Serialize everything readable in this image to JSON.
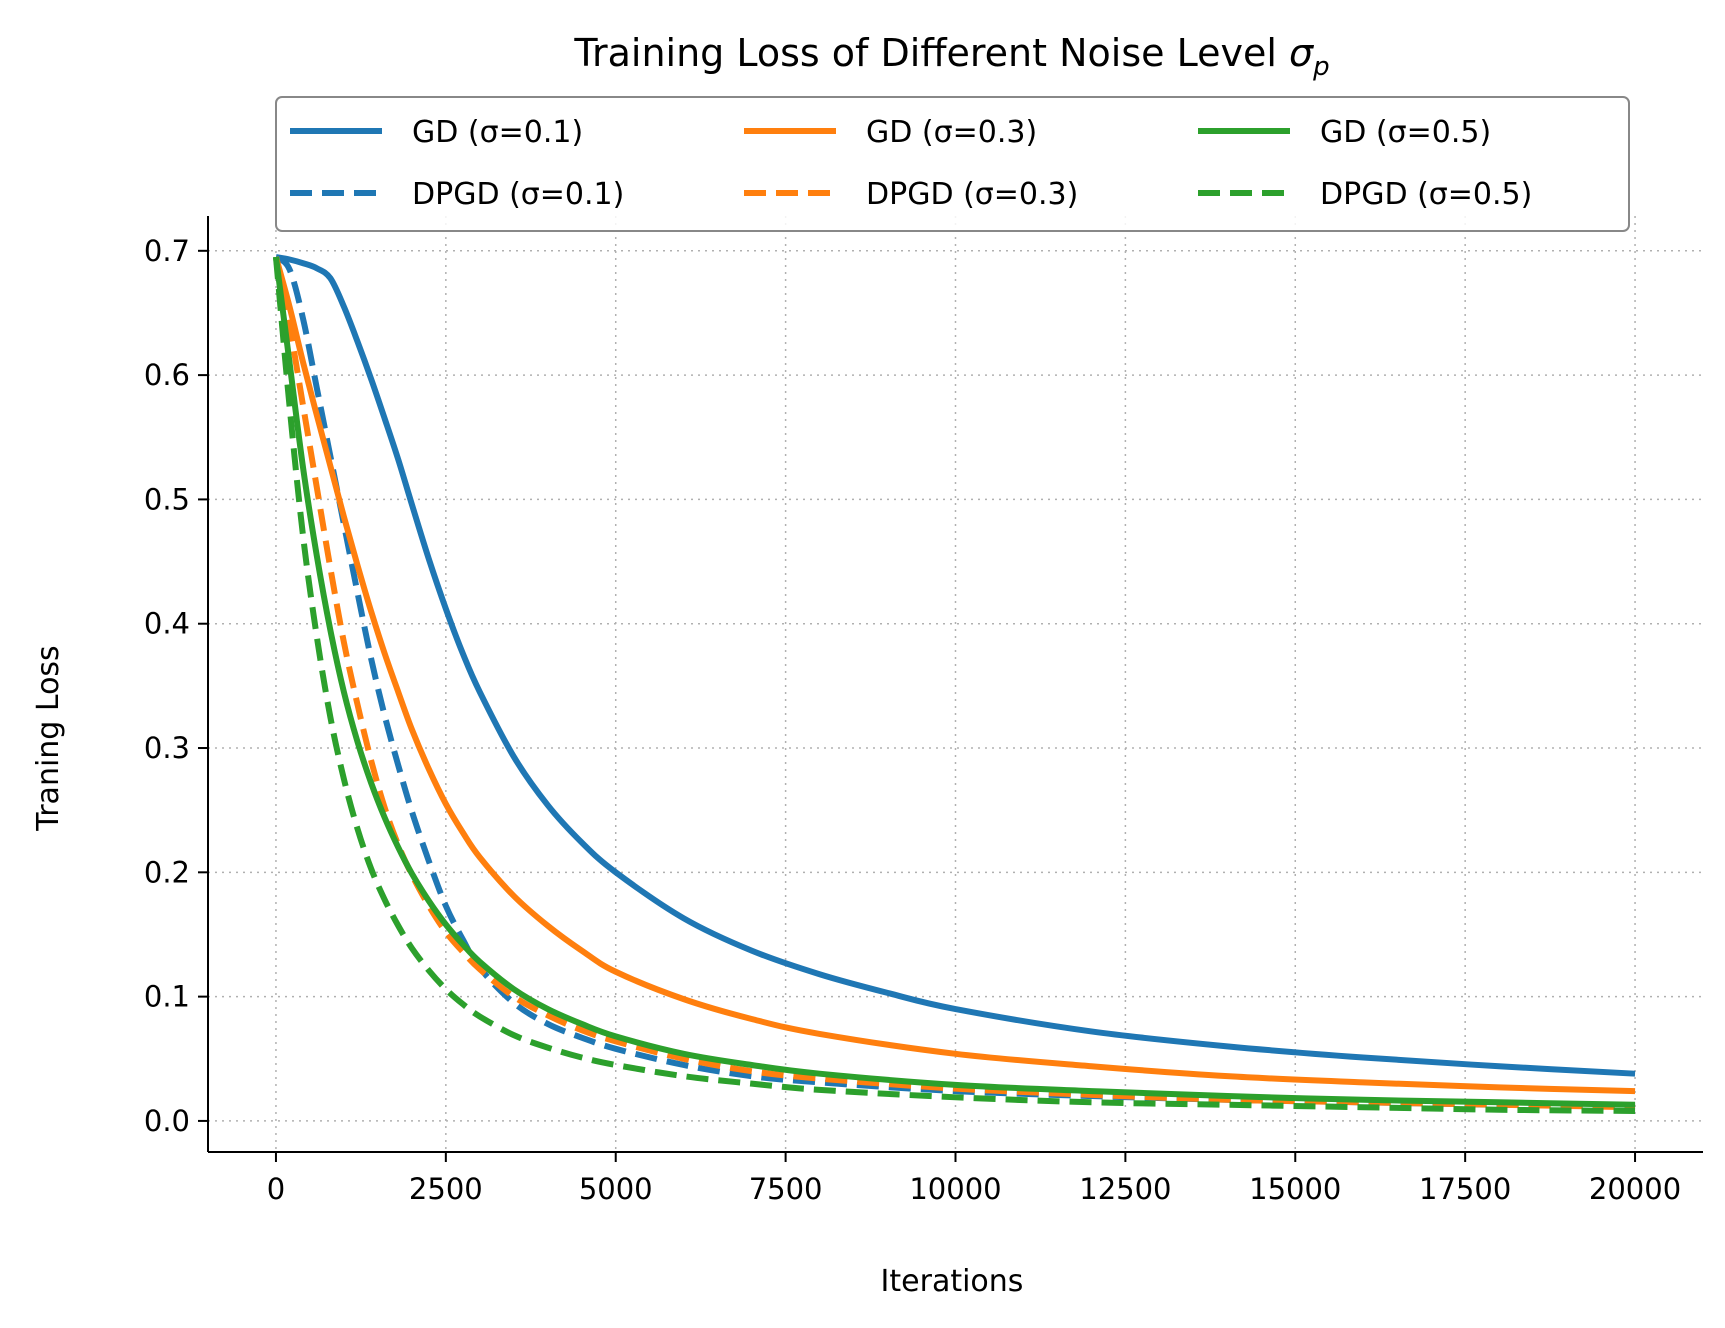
{
  "chart_data": {
    "type": "line",
    "title": "Training Loss of Different Noise Level",
    "title_symbol": "σ",
    "title_symbol_subscript": "p",
    "xlabel": "Iterations",
    "ylabel": "Traning Loss",
    "xlim": [
      -1000,
      21000
    ],
    "ylim": [
      -0.025,
      0.728
    ],
    "xticks": [
      0,
      2500,
      5000,
      7500,
      10000,
      12500,
      15000,
      17500,
      20000
    ],
    "yticks": [
      0.0,
      0.1,
      0.2,
      0.3,
      0.4,
      0.5,
      0.6,
      0.7
    ],
    "grid": true,
    "legend_placement": "top-center",
    "legend_columns": 3,
    "series": [
      {
        "name": "GD (σ=0.1)",
        "color": "#1f77b4",
        "style": "solid",
        "x": [
          0,
          200,
          400,
          600,
          800,
          1000,
          1200,
          1400,
          1600,
          1800,
          2000,
          2250,
          2500,
          2750,
          3000,
          3500,
          4000,
          4500,
          5000,
          6000,
          7000,
          8000,
          9000,
          10000,
          12000,
          14000,
          16000,
          18000,
          20000
        ],
        "y": [
          0.695,
          0.693,
          0.69,
          0.686,
          0.678,
          0.655,
          0.627,
          0.597,
          0.565,
          0.532,
          0.496,
          0.452,
          0.412,
          0.376,
          0.345,
          0.293,
          0.254,
          0.224,
          0.2,
          0.163,
          0.137,
          0.118,
          0.103,
          0.09,
          0.072,
          0.06,
          0.051,
          0.044,
          0.038
        ]
      },
      {
        "name": "DPGD (σ=0.1)",
        "color": "#1f77b4",
        "style": "dashed",
        "x": [
          0,
          200,
          400,
          600,
          800,
          1000,
          1200,
          1400,
          1600,
          1800,
          2000,
          2250,
          2500,
          2750,
          3000,
          3500,
          4000,
          4500,
          5000,
          6000,
          7000,
          8000,
          10000,
          12000,
          14000,
          16000,
          18000,
          20000
        ],
        "y": [
          0.695,
          0.685,
          0.645,
          0.59,
          0.535,
          0.48,
          0.425,
          0.372,
          0.326,
          0.286,
          0.249,
          0.209,
          0.173,
          0.146,
          0.123,
          0.095,
          0.078,
          0.067,
          0.058,
          0.045,
          0.036,
          0.031,
          0.024,
          0.02,
          0.017,
          0.015,
          0.013,
          0.012
        ]
      },
      {
        "name": "GD (σ=0.3)",
        "color": "#ff7f0e",
        "style": "solid",
        "x": [
          0,
          200,
          400,
          600,
          800,
          1000,
          1200,
          1400,
          1600,
          1800,
          2000,
          2250,
          2500,
          2750,
          3000,
          3500,
          4000,
          4500,
          5000,
          6000,
          7000,
          8000,
          10000,
          12000,
          14000,
          16000,
          18000,
          20000
        ],
        "y": [
          0.695,
          0.655,
          0.61,
          0.568,
          0.527,
          0.486,
          0.447,
          0.41,
          0.376,
          0.345,
          0.315,
          0.283,
          0.255,
          0.232,
          0.212,
          0.181,
          0.157,
          0.137,
          0.12,
          0.098,
          0.082,
          0.07,
          0.054,
          0.044,
          0.036,
          0.031,
          0.027,
          0.024
        ]
      },
      {
        "name": "DPGD (σ=0.3)",
        "color": "#ff7f0e",
        "style": "dashed",
        "x": [
          0,
          200,
          400,
          600,
          800,
          1000,
          1200,
          1400,
          1600,
          1800,
          2000,
          2250,
          2500,
          2750,
          3000,
          3500,
          4000,
          4500,
          5000,
          6000,
          7000,
          8000,
          10000,
          12000,
          14000,
          16000,
          18000,
          20000
        ],
        "y": [
          0.695,
          0.64,
          0.575,
          0.51,
          0.445,
          0.385,
          0.335,
          0.29,
          0.252,
          0.222,
          0.198,
          0.173,
          0.152,
          0.136,
          0.122,
          0.1,
          0.085,
          0.073,
          0.064,
          0.05,
          0.04,
          0.034,
          0.026,
          0.021,
          0.017,
          0.015,
          0.013,
          0.011
        ]
      },
      {
        "name": "GD (σ=0.5)",
        "color": "#2ca02c",
        "style": "solid",
        "x": [
          0,
          200,
          400,
          600,
          800,
          1000,
          1200,
          1400,
          1600,
          1800,
          2000,
          2250,
          2500,
          2750,
          3000,
          3500,
          4000,
          4500,
          5000,
          6000,
          7000,
          8000,
          10000,
          12000,
          14000,
          16000,
          18000,
          20000
        ],
        "y": [
          0.695,
          0.61,
          0.525,
          0.455,
          0.395,
          0.345,
          0.305,
          0.272,
          0.244,
          0.22,
          0.199,
          0.177,
          0.158,
          0.142,
          0.128,
          0.106,
          0.09,
          0.078,
          0.068,
          0.054,
          0.045,
          0.038,
          0.029,
          0.024,
          0.02,
          0.017,
          0.015,
          0.013
        ]
      },
      {
        "name": "DPGD (σ=0.5)",
        "color": "#2ca02c",
        "style": "dashed",
        "x": [
          0,
          200,
          400,
          600,
          800,
          1000,
          1200,
          1400,
          1600,
          1800,
          2000,
          2250,
          2500,
          2750,
          3000,
          3500,
          4000,
          4500,
          5000,
          6000,
          7000,
          8000,
          10000,
          12000,
          14000,
          16000,
          18000,
          20000
        ],
        "y": [
          0.695,
          0.575,
          0.47,
          0.39,
          0.325,
          0.275,
          0.235,
          0.203,
          0.178,
          0.157,
          0.139,
          0.121,
          0.106,
          0.094,
          0.084,
          0.069,
          0.059,
          0.051,
          0.045,
          0.036,
          0.03,
          0.025,
          0.019,
          0.015,
          0.013,
          0.011,
          0.009,
          0.008
        ]
      }
    ]
  }
}
